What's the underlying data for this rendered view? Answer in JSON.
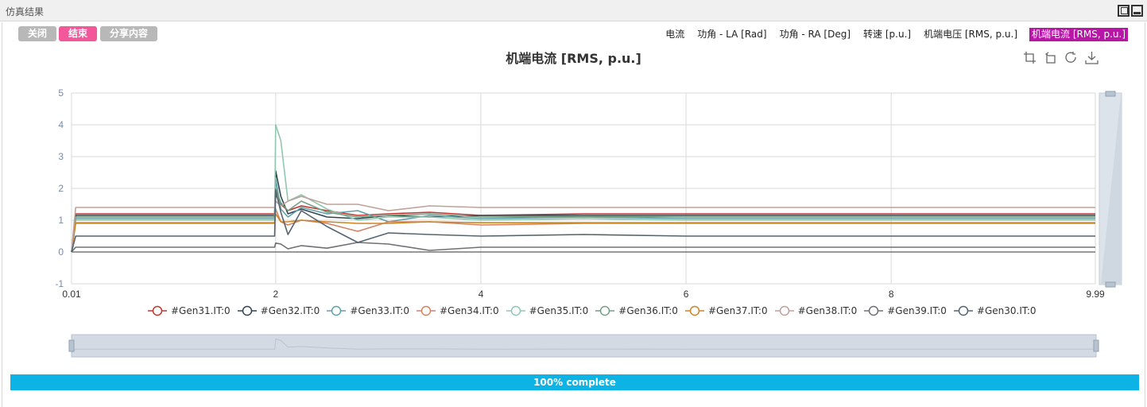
{
  "window": {
    "title": "仿真结果"
  },
  "toolbar": {
    "close_label": "关闭",
    "finish_label": "结束",
    "share_label": "分享内容"
  },
  "tabs": [
    {
      "label": "电流"
    },
    {
      "label": "功角 - LA [Rad]"
    },
    {
      "label": "功角 - RA [Deg]"
    },
    {
      "label": "转速 [p.u.]"
    },
    {
      "label": "机端电压 [RMS, p.u.]"
    },
    {
      "label": "机端电流 [RMS, p.u.]",
      "active": true
    }
  ],
  "tools": [
    "zoom-icon",
    "zoom-reset-icon",
    "restore-icon",
    "download-icon"
  ],
  "progress": {
    "value": 100,
    "label": "100% complete"
  },
  "colors": {
    "active_tab": "#b816a6",
    "finish_button": "#f2579a",
    "progress": "#0db3e4"
  },
  "chart_data": {
    "type": "line",
    "title": "机端电流 [RMS, p.u.]",
    "xlabel": "",
    "ylabel": "",
    "xlim": [
      0.01,
      9.99
    ],
    "ylim": [
      -1,
      5
    ],
    "x_ticks": [
      "0.01",
      "2",
      "4",
      "6",
      "8",
      "9.99"
    ],
    "y_ticks": [
      "-1",
      "0",
      "1",
      "2",
      "3",
      "4",
      "5"
    ],
    "grid": true,
    "legend": "bottom",
    "series": [
      {
        "name": "#Gen31.IT:0",
        "color": "#c23531",
        "x": [
          0.01,
          0.05,
          1.99,
          2.0,
          2.05,
          2.12,
          2.25,
          2.5,
          2.8,
          3.1,
          3.5,
          4.0,
          5.0,
          6.0,
          7.0,
          8.0,
          9.0,
          9.99
        ],
        "y": [
          0,
          1.2,
          1.2,
          1.8,
          1.5,
          1.3,
          1.45,
          1.3,
          1.15,
          1.2,
          1.25,
          1.15,
          1.2,
          1.2,
          1.2,
          1.2,
          1.2,
          1.2
        ]
      },
      {
        "name": "#Gen32.IT:0",
        "color": "#2f4554",
        "x": [
          0.01,
          0.05,
          1.99,
          2.0,
          2.05,
          2.12,
          2.25,
          2.5,
          2.8,
          3.1,
          3.5,
          4.0,
          5.0,
          6.0,
          7.0,
          8.0,
          9.0,
          9.99
        ],
        "y": [
          0,
          1.15,
          1.15,
          2.55,
          1.75,
          1.2,
          1.35,
          1.1,
          1.05,
          1.15,
          1.1,
          1.15,
          1.15,
          1.15,
          1.15,
          1.15,
          1.15,
          1.15
        ]
      },
      {
        "name": "#Gen33.IT:0",
        "color": "#61a0a8",
        "x": [
          0.01,
          0.05,
          1.99,
          2.0,
          2.05,
          2.12,
          2.25,
          2.5,
          2.8,
          3.1,
          3.5,
          4.0,
          5.0,
          6.0,
          7.0,
          8.0,
          9.0,
          9.99
        ],
        "y": [
          0,
          1.05,
          1.05,
          2.3,
          1.35,
          1.1,
          1.4,
          1.2,
          1.3,
          0.95,
          1.15,
          1.05,
          1.1,
          1.05,
          1.05,
          1.05,
          1.05,
          1.05
        ]
      },
      {
        "name": "#Gen34.IT:0",
        "color": "#d48265",
        "x": [
          0.01,
          0.05,
          1.99,
          2.0,
          2.05,
          2.12,
          2.25,
          2.5,
          2.8,
          3.1,
          3.5,
          4.0,
          5.0,
          6.0,
          7.0,
          8.0,
          9.0,
          9.99
        ],
        "y": [
          0,
          0.9,
          0.9,
          1.35,
          0.95,
          0.85,
          1.0,
          0.9,
          0.65,
          0.95,
          0.95,
          0.85,
          0.9,
          0.9,
          0.9,
          0.9,
          0.9,
          0.9
        ]
      },
      {
        "name": "#Gen35.IT:0",
        "color": "#91c7ae",
        "x": [
          0.01,
          0.05,
          1.99,
          2.0,
          2.05,
          2.12,
          2.25,
          2.5,
          2.8,
          3.1,
          3.5,
          4.0,
          5.0,
          6.0,
          7.0,
          8.0,
          9.0,
          9.99
        ],
        "y": [
          0,
          1.0,
          1.0,
          4.0,
          3.5,
          1.6,
          1.8,
          1.35,
          1.0,
          1.1,
          1.1,
          1.0,
          1.05,
          1.0,
          1.0,
          1.0,
          1.0,
          1.0
        ]
      },
      {
        "name": "#Gen36.IT:0",
        "color": "#749f83",
        "x": [
          0.01,
          0.05,
          1.99,
          2.0,
          2.05,
          2.12,
          2.25,
          2.5,
          2.8,
          3.1,
          3.5,
          4.0,
          5.0,
          6.0,
          7.0,
          8.0,
          9.0,
          9.99
        ],
        "y": [
          0,
          1.1,
          1.1,
          2.0,
          1.55,
          1.3,
          1.6,
          1.25,
          1.1,
          1.15,
          1.2,
          1.1,
          1.12,
          1.1,
          1.1,
          1.1,
          1.1,
          1.1
        ]
      },
      {
        "name": "#Gen37.IT:0",
        "color": "#ca8622",
        "x": [
          0.01,
          0.05,
          1.99,
          2.0,
          2.05,
          2.12,
          2.25,
          2.5,
          2.8,
          3.1,
          3.5,
          4.0,
          5.0,
          6.0,
          7.0,
          8.0,
          9.0,
          9.99
        ],
        "y": [
          0,
          0.92,
          0.92,
          1.2,
          0.95,
          0.95,
          1.0,
          0.95,
          0.9,
          0.9,
          0.95,
          0.92,
          0.92,
          0.92,
          0.92,
          0.92,
          0.92,
          0.92
        ]
      },
      {
        "name": "#Gen38.IT:0",
        "color": "#bda29a",
        "x": [
          0.01,
          0.05,
          1.99,
          2.0,
          2.05,
          2.12,
          2.25,
          2.5,
          2.8,
          3.1,
          3.5,
          4.0,
          5.0,
          6.0,
          7.0,
          8.0,
          9.0,
          9.99
        ],
        "y": [
          0,
          1.4,
          1.4,
          1.6,
          1.45,
          1.6,
          1.75,
          1.5,
          1.5,
          1.3,
          1.45,
          1.4,
          1.4,
          1.4,
          1.4,
          1.4,
          1.4,
          1.4
        ]
      },
      {
        "name": "#Gen39.IT:0",
        "color": "#6e7074",
        "x": [
          0.01,
          0.05,
          1.99,
          2.0,
          2.05,
          2.12,
          2.25,
          2.5,
          2.8,
          3.1,
          3.5,
          4.0,
          5.0,
          6.0,
          7.0,
          8.0,
          9.0,
          9.99
        ],
        "y": [
          0,
          0.15,
          0.15,
          0.28,
          0.25,
          0.1,
          0.2,
          0.12,
          0.3,
          0.25,
          0.05,
          0.15,
          0.15,
          0.15,
          0.15,
          0.15,
          0.15,
          0.15
        ]
      },
      {
        "name": "#Gen30.IT:0",
        "color": "#546570",
        "x": [
          0.01,
          0.05,
          1.99,
          2.0,
          2.05,
          2.12,
          2.25,
          2.5,
          2.8,
          3.1,
          3.5,
          4.0,
          5.0,
          6.0,
          7.0,
          8.0,
          9.0,
          9.99
        ],
        "y": [
          0,
          0.5,
          0.5,
          1.95,
          1.25,
          0.55,
          1.3,
          0.8,
          0.3,
          0.6,
          0.55,
          0.5,
          0.55,
          0.5,
          0.5,
          0.5,
          0.5,
          0.5
        ]
      }
    ]
  }
}
